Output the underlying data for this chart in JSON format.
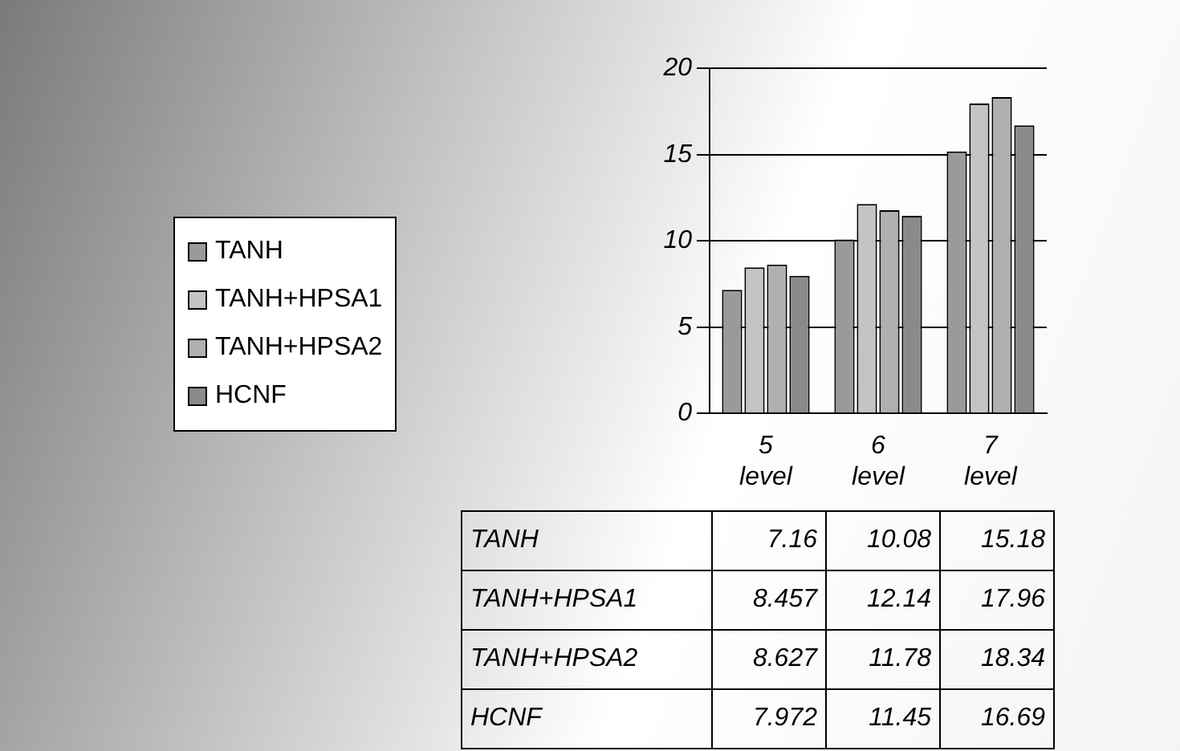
{
  "chart_data": {
    "type": "bar",
    "categories": [
      "5 level",
      "6 level",
      "7 level"
    ],
    "series": [
      {
        "name": "TANH",
        "color": "#9a9a9a",
        "values": [
          7.16,
          10.08,
          15.18
        ]
      },
      {
        "name": "TANH+HPSA1",
        "color": "#c4c4c4",
        "values": [
          8.457,
          12.14,
          17.96
        ]
      },
      {
        "name": "TANH+HPSA2",
        "color": "#b0b0b0",
        "values": [
          8.627,
          11.78,
          18.34
        ]
      },
      {
        "name": "HCNF",
        "color": "#8a8a8a",
        "values": [
          7.972,
          11.45,
          16.69
        ]
      }
    ],
    "ylim": [
      0,
      20
    ],
    "yticks": [
      0,
      5,
      10,
      15,
      20
    ],
    "grid": "y",
    "legend": "left",
    "data_labels": true
  }
}
